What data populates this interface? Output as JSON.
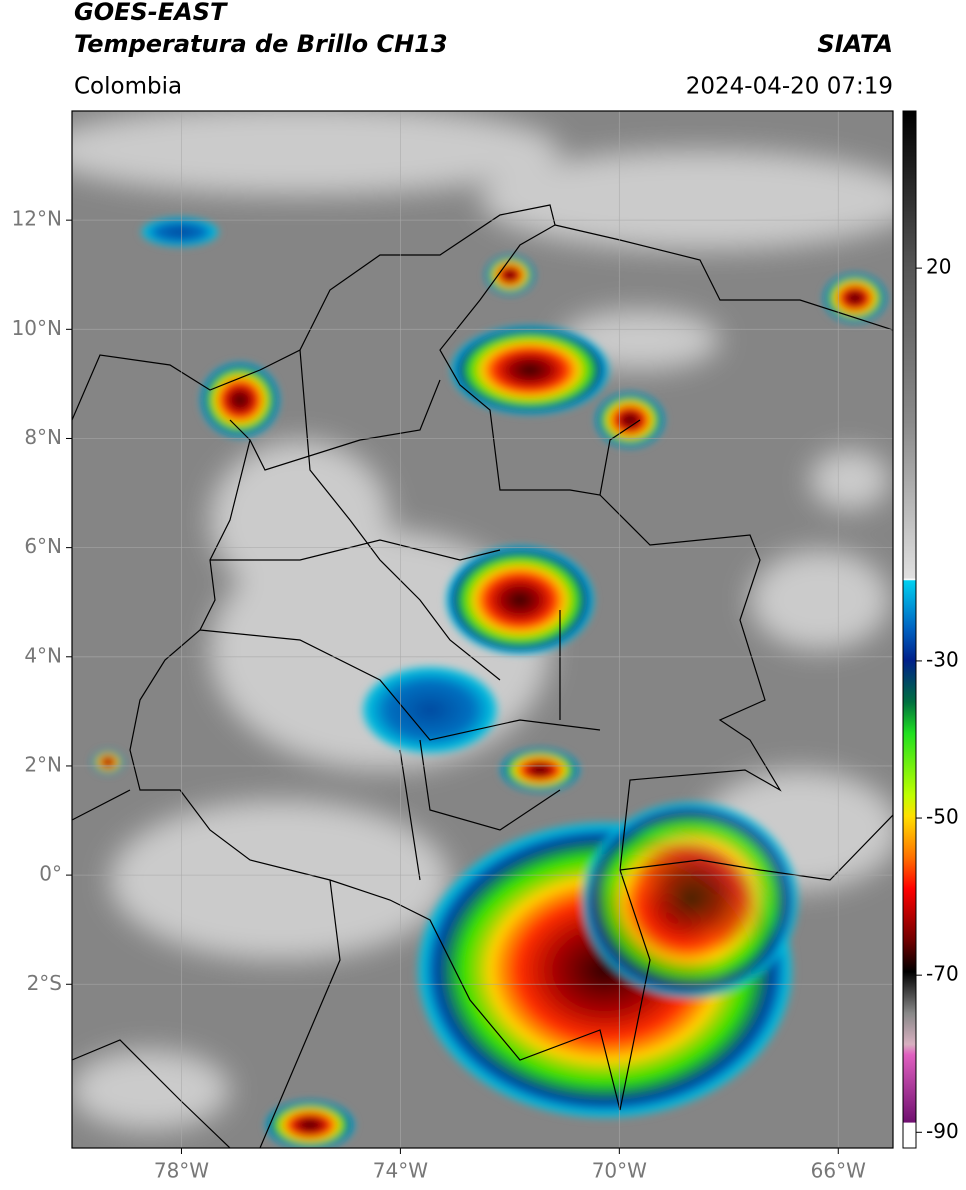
{
  "header": {
    "source": "GOES-EAST",
    "product": "Temperatura de Brillo CH13",
    "agency": "SIATA",
    "region": "Colombia",
    "datetime": "2024-04-20 07:19"
  },
  "map": {
    "xlim": [
      -80,
      -65
    ],
    "ylim": [
      -5,
      14
    ],
    "xticks": [
      {
        "value": -78,
        "label": "78°W"
      },
      {
        "value": -74,
        "label": "74°W"
      },
      {
        "value": -70,
        "label": "70°W"
      },
      {
        "value": -66,
        "label": "66°W"
      }
    ],
    "yticks": [
      {
        "value": 12,
        "label": "12°N"
      },
      {
        "value": 10,
        "label": "10°N"
      },
      {
        "value": 8,
        "label": "8°N"
      },
      {
        "value": 6,
        "label": "6°N"
      },
      {
        "value": 4,
        "label": "4°N"
      },
      {
        "value": 2,
        "label": "2°N"
      },
      {
        "value": 0,
        "label": "0°"
      },
      {
        "value": -2,
        "label": "2°S"
      }
    ],
    "grid": true
  },
  "colorbar": {
    "lim": [
      -92,
      40
    ],
    "ticks": [
      20,
      -30,
      -50,
      -70,
      -90
    ]
  }
}
